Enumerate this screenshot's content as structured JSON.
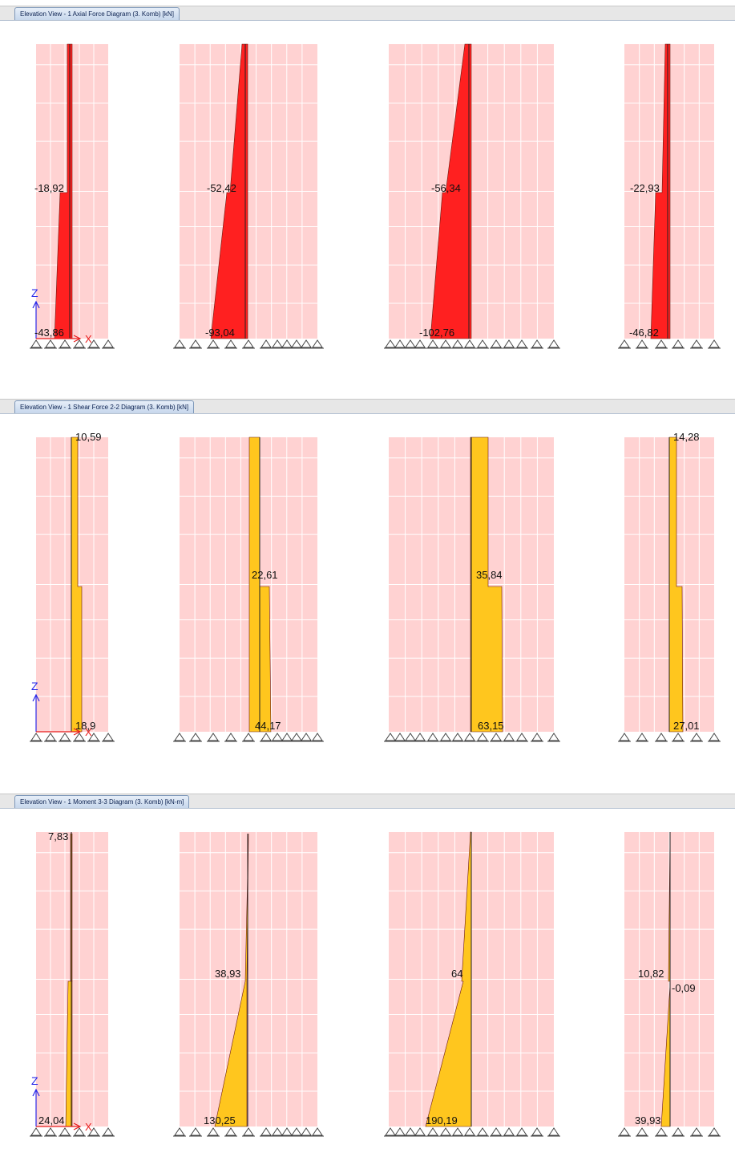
{
  "panels": [
    {
      "title": "Elevation View - 1   Axial Force Diagram   (3. Komb)  [kN]",
      "kind": "axial",
      "columns": [
        {
          "labels": [
            "-18,92",
            "-43,86"
          ]
        },
        {
          "labels": [
            "-52,42",
            "-93,04"
          ]
        },
        {
          "labels": [
            "-56,34",
            "-102,76"
          ]
        },
        {
          "labels": [
            "-22,93",
            "-46,82"
          ]
        }
      ]
    },
    {
      "title": "Elevation View - 1   Shear Force 2-2 Diagram   (3. Komb)  [kN]",
      "kind": "shear",
      "columns": [
        {
          "labels": [
            "10,59",
            "18,9"
          ]
        },
        {
          "labels": [
            "22,61",
            "44,17"
          ]
        },
        {
          "labels": [
            "35,84",
            "63,15"
          ]
        },
        {
          "labels": [
            "14,28",
            "27,01"
          ]
        }
      ]
    },
    {
      "title": "Elevation View - 1   Moment 3-3 Diagram   (3. Komb)  [kN-m]",
      "kind": "moment",
      "columns": [
        {
          "labels": [
            "7,83",
            "24,04"
          ]
        },
        {
          "labels": [
            "38,93",
            "130,25"
          ]
        },
        {
          "labels": [
            "64",
            "190,19"
          ]
        },
        {
          "labels": [
            "10,82",
            "-0,09",
            "39,93"
          ]
        }
      ]
    }
  ],
  "axis": {
    "z_label": "Z",
    "x_label": "X"
  },
  "colors": {
    "background_grid": "#ffd2d2",
    "grid_line": "#ffffff",
    "axial_fill": "#ff2020",
    "shear_fill": "#ffc61e",
    "moment_fill": "#ffc61e",
    "axis_z": "#2a2ae8",
    "axis_x": "#e81c1c",
    "support": "#444444"
  }
}
